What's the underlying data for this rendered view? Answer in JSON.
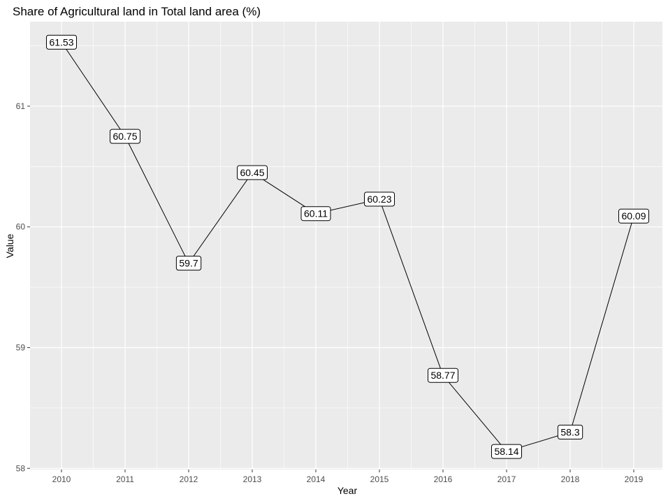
{
  "chart_data": {
    "type": "line",
    "title": "Share of Agricultural land in Total land area (%)",
    "xlabel": "Year",
    "ylabel": "Value",
    "categories": [
      "2010",
      "2011",
      "2012",
      "2013",
      "2014",
      "2015",
      "2016",
      "2017",
      "2018",
      "2019"
    ],
    "values": [
      61.53,
      60.75,
      59.7,
      60.45,
      60.11,
      60.23,
      58.77,
      58.14,
      58.3,
      60.09
    ],
    "data_labels": [
      "61.53",
      "60.75",
      "59.7",
      "60.45",
      "60.11",
      "60.23",
      "58.77",
      "58.14",
      "58.3",
      "60.09"
    ],
    "y_ticks": [
      "58",
      "59",
      "60",
      "61"
    ],
    "ylim": [
      57.99,
      61.7
    ],
    "grid": true,
    "colors": {
      "panel": "#ebebeb",
      "grid": "#ffffff",
      "line": "#000000",
      "tick_text": "#4d4d4d"
    }
  }
}
